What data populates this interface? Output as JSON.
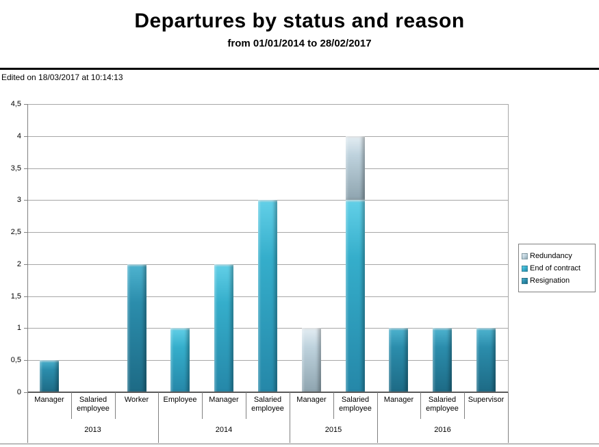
{
  "header": {
    "title": "Departures by status and reason",
    "subtitle": "from 01/01/2014 to 28/02/2017",
    "edited_note": "Edited on 18/03/2017 at 10:14:13"
  },
  "chart_data": {
    "type": "bar",
    "stacked": true,
    "grid": true,
    "legend_position": "right",
    "legend_border": true,
    "title": "Departures by status and reason",
    "subtitle": "from 01/01/2014 to 28/02/2017",
    "xlabel": "",
    "ylabel": "",
    "ylim": [
      0,
      4.5
    ],
    "ytick_step": 0.5,
    "ytick_labels": [
      "0",
      "0,5",
      "1",
      "1,5",
      "2",
      "2,5",
      "3",
      "3,5",
      "4",
      "4,5"
    ],
    "groups": [
      {
        "label": "2013",
        "categories": [
          "Manager",
          "Salaried employee",
          "Worker"
        ]
      },
      {
        "label": "2014",
        "categories": [
          "Employee",
          "Manager",
          "Salaried employee"
        ]
      },
      {
        "label": "2015",
        "categories": [
          "Manager",
          "Salaried employee"
        ]
      },
      {
        "label": "2016",
        "categories": [
          "Manager",
          "Salaried employee",
          "Supervisor"
        ]
      }
    ],
    "series": [
      {
        "name": "Redundancy",
        "color": "#bed2dd",
        "color_light": "#e4eef3",
        "color_dark": "#8ea4af",
        "values": [
          0,
          0,
          0,
          0,
          0,
          0,
          1,
          1,
          0,
          0,
          0
        ]
      },
      {
        "name": "End of contract",
        "color": "#35aecb",
        "color_light": "#63d0e8",
        "color_dark": "#2587a8",
        "values": [
          0,
          0,
          0,
          1,
          2,
          3,
          0,
          3,
          0,
          0,
          0
        ]
      },
      {
        "name": "Resignation",
        "color": "#2b8dac",
        "color_light": "#4fb4d0",
        "color_dark": "#1d6a85",
        "values": [
          0.5,
          0,
          2,
          0,
          0,
          0,
          0,
          0,
          1,
          1,
          1
        ]
      }
    ],
    "stack_order_bottom_to_top": [
      "Resignation",
      "End of contract",
      "Redundancy"
    ]
  }
}
